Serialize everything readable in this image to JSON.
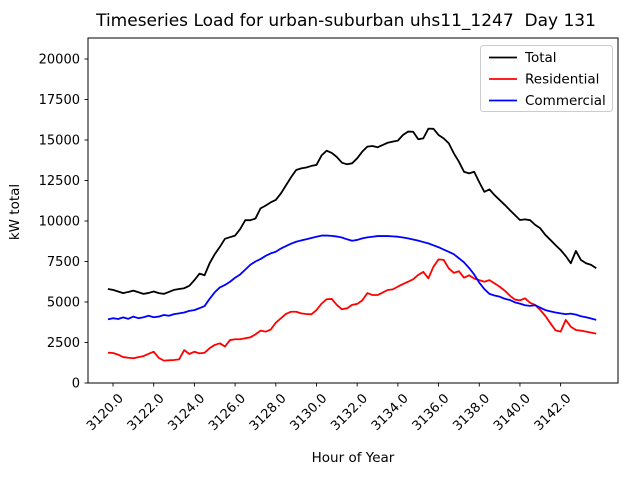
{
  "chart_data": {
    "type": "line",
    "title": "Timeseries Load for urban-suburban uhs11_1247  Day 131",
    "xlabel": "Hour of Year",
    "ylabel": "kW total",
    "grid": false,
    "legend_position": "upper right",
    "x_start": 3119.75,
    "x_step": 0.25,
    "xlim": [
      3118.77,
      3144.82
    ],
    "ylim": [
      0,
      21296
    ],
    "xticks": [
      3120,
      3122,
      3124,
      3126,
      3128,
      3130,
      3132,
      3134,
      3136,
      3138,
      3140,
      3142
    ],
    "xtick_labels": [
      "3120.0",
      "3122.0",
      "3124.0",
      "3126.0",
      "3128.0",
      "3130.0",
      "3132.0",
      "3134.0",
      "3136.0",
      "3138.0",
      "3140.0",
      "3142.0"
    ],
    "yticks": [
      0,
      2500,
      5000,
      7500,
      10000,
      12500,
      15000,
      17500,
      20000
    ],
    "ytick_labels": [
      "0",
      "2500",
      "5000",
      "7500",
      "10000",
      "12500",
      "15000",
      "17500",
      "20000"
    ],
    "series": [
      {
        "name": "Total",
        "color": "#000000",
        "values": [
          5800,
          5750,
          5650,
          5550,
          5620,
          5700,
          5600,
          5500,
          5560,
          5650,
          5550,
          5500,
          5620,
          5750,
          5800,
          5850,
          6000,
          6350,
          6750,
          6650,
          7400,
          7950,
          8400,
          8900,
          9000,
          9100,
          9500,
          10050,
          10050,
          10150,
          10780,
          10950,
          11150,
          11300,
          11700,
          12200,
          12700,
          13150,
          13250,
          13300,
          13400,
          13460,
          14050,
          14340,
          14200,
          13950,
          13600,
          13500,
          13560,
          13870,
          14280,
          14590,
          14630,
          14550,
          14690,
          14830,
          14900,
          14960,
          15310,
          15520,
          15510,
          15050,
          15100,
          15700,
          15690,
          15310,
          15100,
          14800,
          14180,
          13660,
          13040,
          12940,
          13040,
          12400,
          11800,
          11950,
          11600,
          11300,
          11000,
          10680,
          10370,
          10060,
          10100,
          10050,
          9760,
          9550,
          9140,
          8830,
          8510,
          8210,
          7840,
          7390,
          8150,
          7590,
          7390,
          7290,
          7080
        ]
      },
      {
        "name": "Residential",
        "color": "#ff0000",
        "values": [
          1870,
          1850,
          1750,
          1600,
          1560,
          1530,
          1600,
          1660,
          1800,
          1930,
          1550,
          1380,
          1400,
          1420,
          1460,
          2030,
          1790,
          1930,
          1830,
          1870,
          2150,
          2350,
          2450,
          2250,
          2650,
          2700,
          2700,
          2760,
          2820,
          3000,
          3230,
          3170,
          3300,
          3720,
          3990,
          4260,
          4400,
          4400,
          4300,
          4260,
          4240,
          4500,
          4900,
          5170,
          5190,
          4820,
          4550,
          4610,
          4820,
          4880,
          5100,
          5550,
          5430,
          5430,
          5580,
          5740,
          5780,
          5950,
          6110,
          6250,
          6400,
          6670,
          6860,
          6460,
          7180,
          7630,
          7600,
          7080,
          6800,
          6900,
          6500,
          6650,
          6450,
          6350,
          6250,
          6350,
          6150,
          5950,
          5700,
          5400,
          5150,
          5100,
          5225,
          4950,
          4815,
          4505,
          4135,
          3685,
          3250,
          3170,
          3890,
          3475,
          3270,
          3230,
          3170,
          3110,
          3050
        ]
      },
      {
        "name": "Commercial",
        "color": "#0000ff",
        "values": [
          3930,
          4000,
          3950,
          4050,
          3960,
          4100,
          4000,
          4060,
          4150,
          4060,
          4100,
          4200,
          4150,
          4250,
          4300,
          4350,
          4450,
          4500,
          4620,
          4750,
          5200,
          5600,
          5900,
          6050,
          6250,
          6500,
          6700,
          7000,
          7300,
          7500,
          7650,
          7850,
          8000,
          8100,
          8300,
          8450,
          8600,
          8720,
          8800,
          8870,
          8950,
          9030,
          9100,
          9100,
          9080,
          9040,
          8980,
          8870,
          8780,
          8830,
          8930,
          8990,
          9030,
          9070,
          9070,
          9070,
          9050,
          9030,
          8980,
          8930,
          8860,
          8790,
          8700,
          8620,
          8500,
          8380,
          8240,
          8100,
          7950,
          7700,
          7450,
          7100,
          6700,
          6200,
          5800,
          5500,
          5400,
          5330,
          5200,
          5125,
          4980,
          4900,
          4800,
          4760,
          4800,
          4650,
          4500,
          4420,
          4350,
          4300,
          4250,
          4280,
          4220,
          4120,
          4060,
          3980,
          3900
        ]
      }
    ]
  }
}
